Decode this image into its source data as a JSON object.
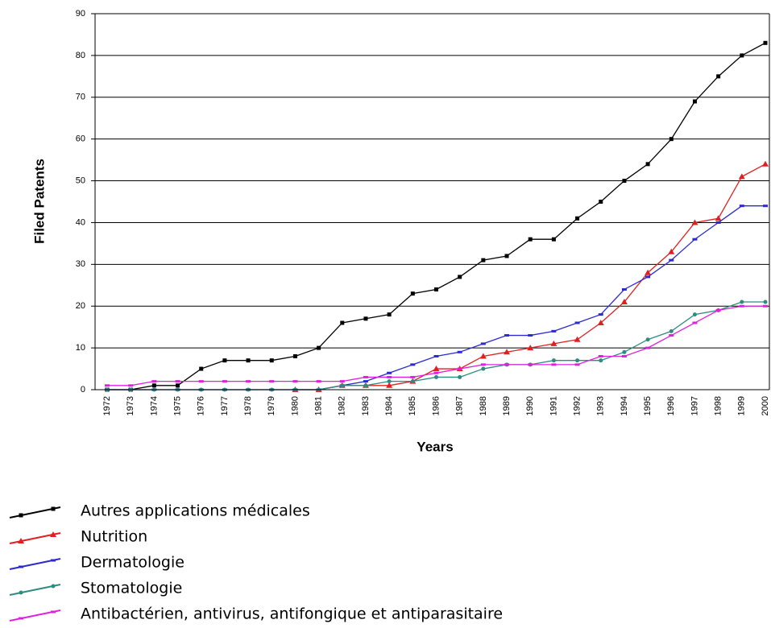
{
  "chart_data": {
    "type": "line",
    "y_label": "Filed Patents",
    "x_label": "Years",
    "categories": [
      "1972",
      "1973",
      "1974",
      "1975",
      "1976",
      "1977",
      "1978",
      "1979",
      "1980",
      "1981",
      "1982",
      "1983",
      "1984",
      "1985",
      "1986",
      "1987",
      "1988",
      "1989",
      "1990",
      "1991",
      "1992",
      "1993",
      "1994",
      "1995",
      "1996",
      "1997",
      "1998",
      "1999",
      "2000"
    ],
    "ylim": [
      0,
      90
    ],
    "yticks": [
      0,
      10,
      20,
      30,
      40,
      50,
      60,
      70,
      80,
      90
    ],
    "grid": true,
    "series": [
      {
        "name": "Autres applications médicales",
        "color": "#000000",
        "marker": "square",
        "values": [
          0,
          0,
          1,
          1,
          5,
          7,
          7,
          7,
          8,
          10,
          16,
          17,
          18,
          23,
          24,
          27,
          31,
          32,
          36,
          36,
          41,
          45,
          50,
          54,
          60,
          69,
          75,
          80,
          83
        ]
      },
      {
        "name": "Nutrition",
        "color": "#e02020",
        "marker": "triangle",
        "values": [
          null,
          null,
          null,
          null,
          null,
          null,
          null,
          null,
          0,
          0,
          1,
          1,
          1,
          2,
          5,
          5,
          8,
          9,
          10,
          11,
          12,
          16,
          21,
          28,
          33,
          40,
          41,
          51,
          54
        ]
      },
      {
        "name": "Dermatologie",
        "color": "#2a2ad0",
        "marker": "dash",
        "values": [
          0,
          0,
          0,
          0,
          0,
          0,
          0,
          0,
          0,
          0,
          1,
          2,
          4,
          6,
          8,
          9,
          11,
          13,
          13,
          14,
          16,
          18,
          24,
          27,
          31,
          36,
          40,
          44,
          44
        ]
      },
      {
        "name": "Stomatologie",
        "color": "#2e8b80",
        "marker": "circle",
        "values": [
          0,
          0,
          0,
          0,
          0,
          0,
          0,
          0,
          0,
          0,
          1,
          1,
          2,
          2,
          3,
          3,
          5,
          6,
          6,
          7,
          7,
          7,
          9,
          12,
          14,
          18,
          19,
          21,
          21
        ]
      },
      {
        "name": "Antibactérien, antivirus, antifongique et antiparasitaire",
        "color": "#e020e0",
        "marker": "dash",
        "values": [
          1,
          1,
          2,
          2,
          2,
          2,
          2,
          2,
          2,
          2,
          2,
          3,
          3,
          3,
          4,
          5,
          6,
          6,
          6,
          6,
          6,
          8,
          8,
          10,
          13,
          16,
          19,
          20,
          20
        ]
      }
    ]
  }
}
